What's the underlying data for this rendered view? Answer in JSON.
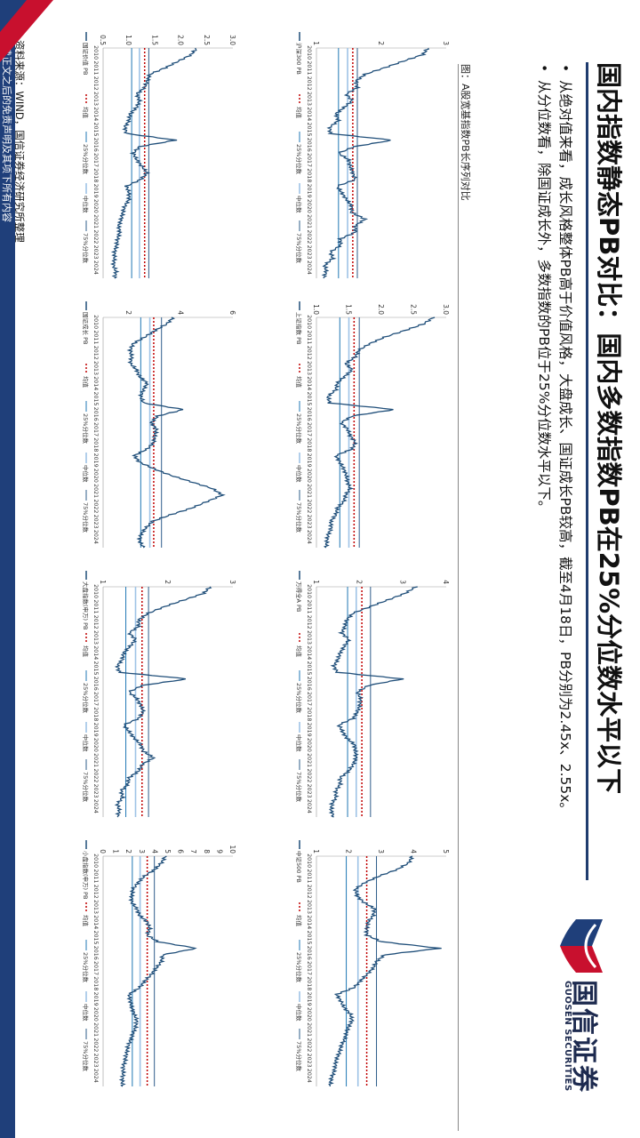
{
  "title": "国内指数静态PB对比：国内多数指数PB在25%分位数水平以下",
  "bullets": [
    "从绝对值来看，成长风格整体PB高于价值风格，大盘成长、国证成长PB较高，截至4月18日，PB分别为2.45x、2.55x。",
    "从分位数看，除国证成长外，多数指数的PB位于25%分位数水平以下。"
  ],
  "caption": "图：A股宽基指数PB长序列对比",
  "source": "资料来源：WIND，国信证券经济研究所整理",
  "footer": "请务必阅读正文之后的免责声明及其项下所有内容",
  "logo": {
    "cn": "国信证券",
    "en": "GUOSEN SECURITIES"
  },
  "colors": {
    "pb": "#1f4e79",
    "mean": "#c00000",
    "p25": "#1f77b4",
    "median": "#9ec3e6",
    "p75": "#2e5c8a",
    "brand_navy": "#1f3f7a",
    "brand_red": "#c8102e"
  },
  "chart_data": [
    {
      "type": "line",
      "series_label": "沪深300 PB",
      "x_ticks": [
        "2010",
        "2011",
        "2012",
        "2013",
        "2014",
        "2015",
        "2016",
        "2017",
        "2018",
        "2019",
        "2020",
        "2021",
        "2022",
        "2023",
        "2024"
      ],
      "ylim": [
        1,
        3
      ],
      "y_ticks": [
        "1",
        "2",
        "3"
      ],
      "mean": 1.56,
      "p25": 1.34,
      "median": 1.48,
      "p75": 1.63,
      "values": [
        2.72,
        2.64,
        2.34,
        2.05,
        1.75,
        1.61,
        1.63,
        1.46,
        1.55,
        1.43,
        1.3,
        1.34,
        1.21,
        1.21,
        2.17,
        1.58,
        1.34,
        1.5,
        1.52,
        1.56,
        1.6,
        1.32,
        1.39,
        1.46,
        1.54,
        1.54,
        1.75,
        1.6,
        1.6,
        1.37,
        1.37,
        1.22,
        1.25,
        1.13,
        1.15,
        1.11
      ]
    },
    {
      "type": "line",
      "series_label": "上证指数 PB",
      "x_ticks": [
        "2010",
        "2011",
        "2012",
        "2013",
        "2014",
        "2015",
        "2016",
        "2017",
        "2018",
        "2019",
        "2020",
        "2021",
        "2022",
        "2023",
        "2024"
      ],
      "ylim": [
        1,
        3
      ],
      "y_ticks": [
        "1.0",
        "1.5",
        "2.0",
        "2.5",
        "3.0"
      ],
      "mean": 1.58,
      "p25": 1.36,
      "median": 1.5,
      "p75": 1.66,
      "values": [
        2.8,
        2.65,
        2.36,
        2.05,
        1.82,
        1.65,
        1.6,
        1.45,
        1.55,
        1.43,
        1.32,
        1.3,
        1.18,
        1.2,
        2.2,
        1.55,
        1.38,
        1.48,
        1.52,
        1.6,
        1.55,
        1.3,
        1.36,
        1.42,
        1.46,
        1.48,
        1.52,
        1.45,
        1.42,
        1.32,
        1.3,
        1.22,
        1.23,
        1.18,
        1.16,
        1.15
      ]
    },
    {
      "type": "line",
      "series_label": "万得全A PB",
      "x_ticks": [
        "2010",
        "2011",
        "2012",
        "2013",
        "2014",
        "2015",
        "2016",
        "2017",
        "2018",
        "2019",
        "2020",
        "2021",
        "2022",
        "2023",
        "2024"
      ],
      "ylim": [
        1,
        4
      ],
      "y_ticks": [
        "1",
        "2",
        "3",
        "4"
      ],
      "mean": 2.05,
      "p25": 1.72,
      "median": 1.92,
      "p75": 2.25,
      "values": [
        3.3,
        3.05,
        2.65,
        2.25,
        1.85,
        1.7,
        1.66,
        1.58,
        1.75,
        1.65,
        1.55,
        1.5,
        1.4,
        1.48,
        3.0,
        2.2,
        1.95,
        2.02,
        2.0,
        1.95,
        1.85,
        1.52,
        1.6,
        1.7,
        1.88,
        1.9,
        1.92,
        1.85,
        1.75,
        1.55,
        1.55,
        1.45,
        1.45,
        1.36,
        1.34,
        1.4
      ]
    },
    {
      "type": "line",
      "series_label": "中证500 PB",
      "x_ticks": [
        "2010",
        "2011",
        "2012",
        "2013",
        "2014",
        "2015",
        "2016",
        "2017",
        "2018",
        "2019",
        "2020",
        "2021",
        "2022",
        "2023",
        "2024"
      ],
      "ylim": [
        1,
        5
      ],
      "y_ticks": [
        "1",
        "2",
        "3",
        "4",
        "5"
      ],
      "mean": 2.55,
      "p25": 1.92,
      "median": 2.28,
      "p75": 2.85,
      "values": [
        3.95,
        3.85,
        3.5,
        2.95,
        2.5,
        2.2,
        2.25,
        2.45,
        2.8,
        2.75,
        2.6,
        2.55,
        2.55,
        3.0,
        4.8,
        3.1,
        2.85,
        2.75,
        2.55,
        2.35,
        2.15,
        1.62,
        1.75,
        1.85,
        2.05,
        2.1,
        1.98,
        1.92,
        1.85,
        1.75,
        1.7,
        1.6,
        1.58,
        1.52,
        1.45,
        1.42
      ]
    },
    {
      "type": "line",
      "series_label": "国证价值 PB",
      "x_ticks": [
        "2010",
        "2011",
        "2012",
        "2013",
        "2014",
        "2015",
        "2016",
        "2017",
        "2018",
        "2019",
        "2020",
        "2021",
        "2022",
        "2023",
        "2024"
      ],
      "ylim": [
        0.5,
        3.0
      ],
      "y_ticks": [
        "0.5",
        "1.0",
        "1.5",
        "2.0",
        "2.5",
        "3.0"
      ],
      "mean": 1.3,
      "p25": 1.05,
      "median": 1.2,
      "p75": 1.38,
      "values": [
        2.3,
        2.2,
        1.95,
        1.7,
        1.4,
        1.35,
        1.3,
        1.15,
        1.2,
        1.15,
        1.02,
        1.0,
        0.92,
        0.95,
        1.9,
        1.2,
        1.08,
        1.15,
        1.25,
        1.35,
        1.22,
        0.95,
        1.0,
        1.0,
        0.92,
        0.88,
        0.85,
        0.8,
        0.82,
        0.78,
        0.76,
        0.72,
        0.72,
        0.7,
        0.75,
        0.72
      ]
    },
    {
      "type": "line",
      "series_label": "国证成长 PB",
      "x_ticks": [
        "2010",
        "2011",
        "2012",
        "2013",
        "2014",
        "2015",
        "2016",
        "2017",
        "2018",
        "2019",
        "2020",
        "2021",
        "2022",
        "2023",
        "2024"
      ],
      "ylim": [
        1,
        6
      ],
      "y_ticks": [
        "2",
        "4",
        "6"
      ],
      "mean": 2.95,
      "p25": 2.45,
      "median": 2.8,
      "p75": 3.25,
      "values": [
        3.7,
        3.45,
        3.0,
        2.6,
        2.15,
        2.05,
        2.1,
        2.05,
        2.3,
        2.4,
        2.7,
        2.55,
        2.45,
        2.55,
        4.1,
        3.1,
        2.85,
        3.05,
        3.0,
        2.95,
        2.7,
        2.2,
        2.4,
        2.95,
        3.6,
        4.4,
        5.2,
        5.6,
        5.0,
        4.4,
        3.6,
        2.9,
        2.65,
        2.45,
        2.4,
        2.55
      ]
    },
    {
      "type": "line",
      "series_label": "大盘指数(申万) PB",
      "x_ticks": [
        "2010",
        "2011",
        "2012",
        "2013",
        "2014",
        "2015",
        "2016",
        "2017",
        "2018",
        "2019",
        "2020",
        "2021",
        "2022",
        "2023",
        "2024"
      ],
      "ylim": [
        1,
        3
      ],
      "y_ticks": [
        "1",
        "2",
        "3"
      ],
      "mean": 1.6,
      "p25": 1.35,
      "median": 1.5,
      "p75": 1.7,
      "values": [
        2.65,
        2.55,
        2.25,
        1.95,
        1.7,
        1.55,
        1.55,
        1.4,
        1.5,
        1.42,
        1.32,
        1.3,
        1.22,
        1.25,
        2.3,
        1.6,
        1.4,
        1.52,
        1.58,
        1.62,
        1.55,
        1.32,
        1.4,
        1.48,
        1.58,
        1.62,
        1.78,
        1.6,
        1.55,
        1.4,
        1.38,
        1.28,
        1.3,
        1.22,
        1.25,
        1.22
      ]
    },
    {
      "type": "line",
      "series_label": "小盘指数(申万) PB",
      "x_ticks": [
        "2010",
        "2011",
        "2012",
        "2013",
        "2014",
        "2015",
        "2016",
        "2017",
        "2018",
        "2019",
        "2020",
        "2021",
        "2022",
        "2023",
        "2024"
      ],
      "ylim": [
        0,
        10
      ],
      "y_ticks": [
        "0",
        "1",
        "2",
        "3",
        "4",
        "5",
        "6",
        "7",
        "8",
        "9",
        "10"
      ],
      "mean": 3.4,
      "p25": 2.25,
      "median": 2.85,
      "p75": 3.95,
      "values": [
        4.8,
        4.5,
        4.0,
        3.2,
        2.7,
        2.3,
        2.2,
        2.2,
        2.6,
        2.8,
        3.4,
        3.6,
        3.4,
        4.2,
        7.2,
        4.6,
        4.5,
        4.1,
        3.7,
        3.2,
        2.8,
        2.0,
        2.1,
        2.2,
        2.4,
        2.6,
        2.5,
        2.3,
        2.1,
        1.9,
        1.8,
        1.7,
        1.55,
        1.55,
        1.48,
        1.5
      ]
    }
  ],
  "legend": {
    "mean": "均值",
    "p25": "25%分位数",
    "median": "中位数",
    "p75": "75%分位数"
  }
}
